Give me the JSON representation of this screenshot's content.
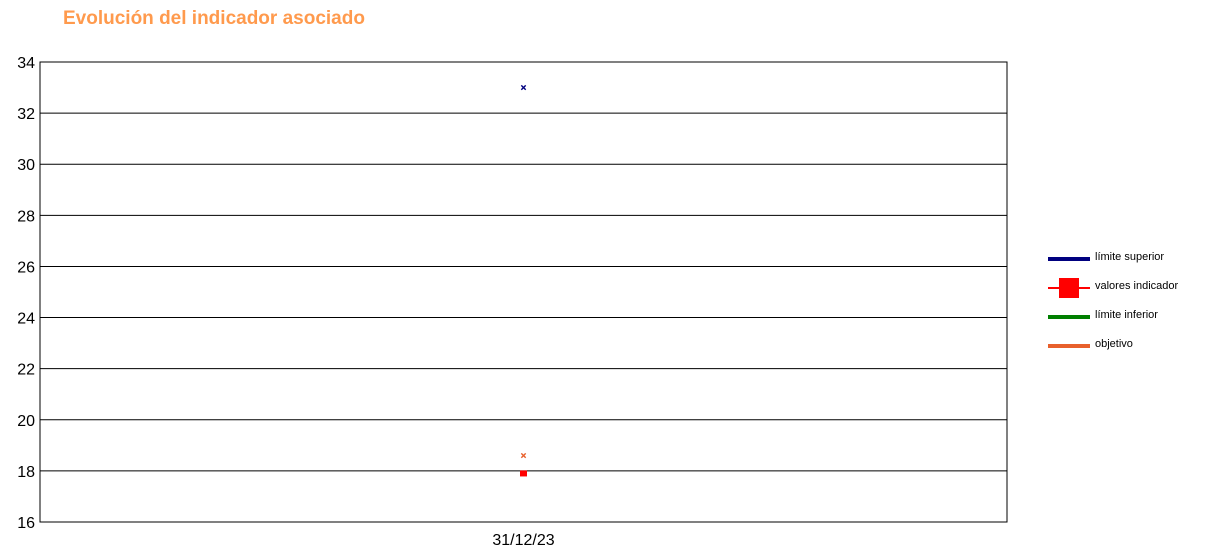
{
  "title": "Evolución del indicador asociado",
  "colors": {
    "title": "#ff9a4d",
    "limite_superior": "#00007f",
    "valores_indicador": "#ff0000",
    "limite_inferior": "#007f00",
    "objetivo": "#e8602c",
    "grid": "#000000"
  },
  "chart_data": {
    "type": "line",
    "title": "Evolución del indicador asociado",
    "xlabel": "",
    "ylabel": "",
    "categories": [
      "31/12/23"
    ],
    "ylim": [
      16,
      34
    ],
    "yticks": [
      16,
      18,
      20,
      22,
      24,
      26,
      28,
      30,
      32,
      34
    ],
    "grid": true,
    "legend_position": "right",
    "series": [
      {
        "name": "límite superior",
        "values": [
          33
        ],
        "color": "#00007f",
        "marker": "x"
      },
      {
        "name": "valores indicador",
        "values": [
          17.9
        ],
        "color": "#ff0000",
        "marker": "square"
      },
      {
        "name": "límite inferior",
        "values": [
          null
        ],
        "color": "#007f00",
        "marker": "none"
      },
      {
        "name": "objetivo",
        "values": [
          18.6
        ],
        "color": "#e8602c",
        "marker": "x"
      }
    ]
  },
  "legend": [
    {
      "label": "límite superior",
      "style": "line",
      "color": "#00007f"
    },
    {
      "label": "valores indicador",
      "style": "square",
      "color": "#ff0000"
    },
    {
      "label": "límite inferior",
      "style": "line",
      "color": "#007f00"
    },
    {
      "label": "objetivo",
      "style": "line",
      "color": "#e8602c"
    }
  ]
}
